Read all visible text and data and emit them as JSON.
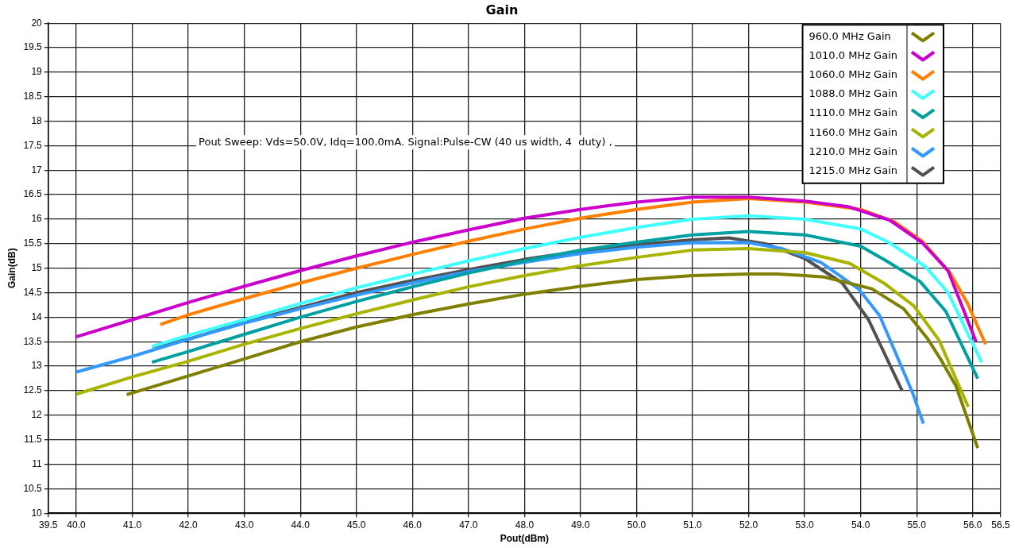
{
  "chart_data": {
    "type": "line",
    "title": "Gain",
    "xlabel": "Pout(dBm)",
    "ylabel": "Gain(dB)",
    "annotations": [
      "Pout Sweep: Vds=50.0V, Idq=100.0mA. Signal:Pulse-CW (40 us width, 4  duty) ,"
    ],
    "xlim": [
      39.5,
      56.5
    ],
    "xticks": [
      39.5,
      {
        "value": 40,
        "label": "40.0"
      },
      {
        "value": 41,
        "label": "41.0"
      },
      {
        "value": 42,
        "label": "42.0"
      },
      {
        "value": 43,
        "label": "43.0"
      },
      {
        "value": 44,
        "label": "44.0"
      },
      {
        "value": 45,
        "label": "45.0"
      },
      {
        "value": 46,
        "label": "46.0"
      },
      {
        "value": 47,
        "label": "47.0"
      },
      {
        "value": 48,
        "label": "48.0"
      },
      {
        "value": 49,
        "label": "49.0"
      },
      {
        "value": 50,
        "label": "50.0"
      },
      {
        "value": 51,
        "label": "51.0"
      },
      {
        "value": 52,
        "label": "52.0"
      },
      {
        "value": 53,
        "label": "53.0"
      },
      {
        "value": 54,
        "label": "54.0"
      },
      {
        "value": 55,
        "label": "55.0"
      },
      {
        "value": 56,
        "label": "56.0"
      },
      56.5
    ],
    "ylim": [
      10,
      20
    ],
    "yticks": [
      10,
      10.5,
      11,
      11.5,
      12,
      12.5,
      13,
      13.5,
      14,
      14.5,
      15,
      15.5,
      16,
      16.5,
      17,
      17.5,
      18,
      18.5,
      19,
      19.5,
      20
    ],
    "grid": true,
    "legend": "top right",
    "marker": "none",
    "line_style": "solid",
    "series": [
      {
        "name": "960.0 MHz Gain",
        "color": "#808000",
        "x": [
          40.9,
          42,
          43,
          44,
          45,
          46,
          47,
          48,
          49,
          50,
          51,
          52,
          52.5,
          53,
          53.35,
          54.2,
          54.77,
          55.19,
          55.45,
          55.7,
          56.09
        ],
        "values": [
          12.42,
          12.8,
          13.15,
          13.5,
          13.8,
          14.05,
          14.27,
          14.47,
          14.63,
          14.77,
          14.85,
          14.88,
          14.88,
          14.85,
          14.82,
          14.58,
          14.17,
          13.57,
          13.1,
          12.6,
          11.33
        ]
      },
      {
        "name": "1010.0 MHz Gain",
        "color": "#cc00cc",
        "x": [
          40,
          41,
          42,
          43,
          44,
          45,
          46,
          47,
          48,
          49,
          50,
          51,
          52,
          53,
          53.8,
          54.52,
          55.09,
          55.56,
          56.06
        ],
        "values": [
          13.6,
          13.95,
          14.3,
          14.63,
          14.95,
          15.25,
          15.53,
          15.78,
          16.02,
          16.2,
          16.35,
          16.45,
          16.45,
          16.37,
          16.25,
          15.98,
          15.53,
          14.95,
          13.5
        ]
      },
      {
        "name": "1060.0 MHz Gain",
        "color": "#ff8000",
        "x": [
          41.5,
          42,
          43,
          44,
          45,
          46,
          47,
          48,
          49,
          50,
          51,
          52,
          53,
          54,
          54.6,
          55.1,
          55.6,
          55.9,
          56.23
        ],
        "values": [
          13.85,
          14.05,
          14.38,
          14.7,
          15.0,
          15.28,
          15.55,
          15.8,
          16.02,
          16.2,
          16.35,
          16.42,
          16.35,
          16.2,
          15.95,
          15.55,
          14.9,
          14.3,
          13.45
        ]
      },
      {
        "name": "1088.0 MHz Gain",
        "color": "#40ffff",
        "x": [
          41.35,
          42,
          43,
          44,
          45,
          46,
          47,
          48,
          49,
          50,
          51,
          52,
          53,
          54,
          54.5,
          55.16,
          55.56,
          56.16
        ],
        "values": [
          13.4,
          13.63,
          13.95,
          14.28,
          14.6,
          14.88,
          15.15,
          15.4,
          15.63,
          15.83,
          16.0,
          16.07,
          16.0,
          15.8,
          15.53,
          15.03,
          14.5,
          13.08
        ]
      },
      {
        "name": "1110.0 MHz Gain",
        "color": "#00a0a0",
        "x": [
          41.35,
          42,
          43,
          44,
          45,
          46,
          47,
          48,
          49,
          50,
          51,
          52,
          53,
          54,
          54.43,
          55.06,
          55.52,
          56.09
        ],
        "values": [
          13.08,
          13.3,
          13.65,
          14.0,
          14.32,
          14.62,
          14.9,
          15.15,
          15.37,
          15.53,
          15.68,
          15.75,
          15.68,
          15.45,
          15.17,
          14.73,
          14.12,
          12.75
        ]
      },
      {
        "name": "1160.0 MHz Gain",
        "color": "#a8b400",
        "x": [
          40,
          41,
          42,
          43,
          44,
          45,
          46,
          47,
          48,
          49,
          50,
          51,
          52,
          53,
          53.8,
          54.41,
          54.95,
          55.4,
          55.92
        ],
        "values": [
          12.43,
          12.78,
          13.1,
          13.45,
          13.77,
          14.07,
          14.35,
          14.62,
          14.85,
          15.05,
          15.22,
          15.37,
          15.4,
          15.32,
          15.1,
          14.7,
          14.23,
          13.53,
          12.17
        ]
      },
      {
        "name": "1210.0 MHz Gain",
        "color": "#3399ff",
        "x": [
          40,
          41,
          42,
          43,
          44,
          45,
          46,
          47,
          48,
          49,
          50,
          51,
          52,
          52.6,
          53.29,
          53.96,
          54.34,
          54.92,
          55.12
        ],
        "values": [
          12.88,
          13.2,
          13.55,
          13.88,
          14.17,
          14.45,
          14.7,
          14.93,
          15.12,
          15.3,
          15.43,
          15.52,
          15.52,
          15.4,
          15.12,
          14.58,
          14.03,
          12.48,
          11.83
        ]
      },
      {
        "name": "1215.0 MHz Gain",
        "color": "#505050",
        "x": [
          41.35,
          42,
          43,
          44,
          45,
          46,
          47,
          48,
          49,
          50,
          51,
          51.65,
          52.3,
          53,
          53.67,
          54.14,
          54.74
        ],
        "values": [
          13.4,
          13.55,
          13.9,
          14.2,
          14.5,
          14.75,
          14.97,
          15.18,
          15.35,
          15.48,
          15.58,
          15.62,
          15.5,
          15.2,
          14.7,
          13.95,
          12.5
        ]
      }
    ]
  }
}
